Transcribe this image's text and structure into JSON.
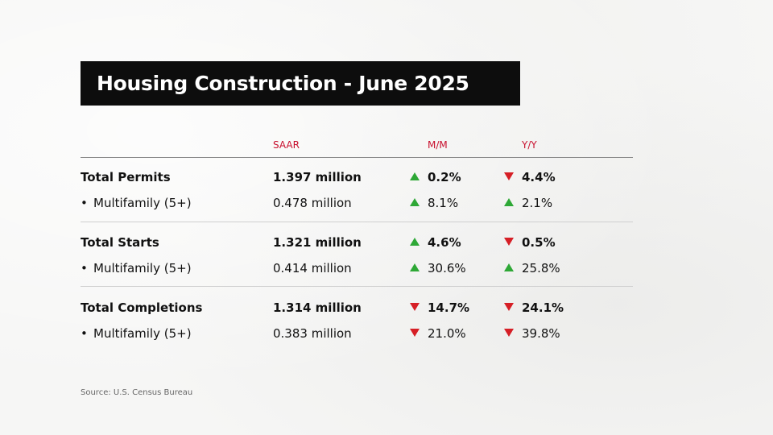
{
  "chart_data": {
    "type": "table",
    "title": "Housing Construction - June 2025",
    "columns": [
      "SAAR",
      "M/M",
      "Y/Y"
    ],
    "rows": [
      {
        "label": "Total Permits",
        "level": "total",
        "saar": "1.397 million",
        "mm": {
          "value": "0.2%",
          "direction": "up"
        },
        "yy": {
          "value": "4.4%",
          "direction": "down"
        }
      },
      {
        "label": "Multifamily (5+)",
        "level": "sub",
        "saar": "0.478 million",
        "mm": {
          "value": "8.1%",
          "direction": "up"
        },
        "yy": {
          "value": "2.1%",
          "direction": "up"
        }
      },
      {
        "label": "Total Starts",
        "level": "total",
        "saar": "1.321 million",
        "mm": {
          "value": "4.6%",
          "direction": "up"
        },
        "yy": {
          "value": "0.5%",
          "direction": "down"
        }
      },
      {
        "label": "Multifamily (5+)",
        "level": "sub",
        "saar": "0.414 million",
        "mm": {
          "value": "30.6%",
          "direction": "up"
        },
        "yy": {
          "value": "25.8%",
          "direction": "up"
        }
      },
      {
        "label": "Total Completions",
        "level": "total",
        "saar": "1.314 million",
        "mm": {
          "value": "14.7%",
          "direction": "down"
        },
        "yy": {
          "value": "24.1%",
          "direction": "down"
        }
      },
      {
        "label": "Multifamily (5+)",
        "level": "sub",
        "saar": "0.383 million",
        "mm": {
          "value": "21.0%",
          "direction": "down"
        },
        "yy": {
          "value": "39.8%",
          "direction": "down"
        }
      }
    ],
    "source": "Source: U.S. Census Bureau"
  },
  "bullet": "•",
  "colors": {
    "header": "#c8102e",
    "up": "#2ea836",
    "down": "#d61f26",
    "title_bg": "#0d0d0d"
  }
}
